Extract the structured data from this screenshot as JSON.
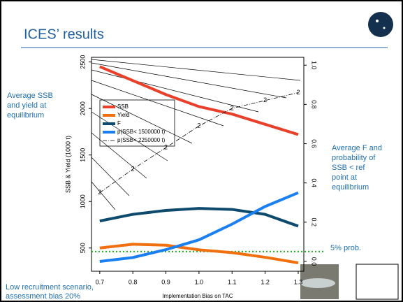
{
  "slide_title": "ICES’ results",
  "left_note": [
    "Average SSB",
    "and yield at",
    "equilibrium"
  ],
  "right_note": [
    "Average F and",
    "probability of",
    "SSB < ref",
    "point at",
    "equilibrium"
  ],
  "bottom_note": [
    "Low recruitment scenario,",
    "assessment bias 20%"
  ],
  "chart_data": {
    "type": "line",
    "x_label": "Implementation Bias on TAC",
    "y_label": "SSB & Yield (1000 t)",
    "xlim": [
      0.675,
      1.317
    ],
    "xticks": [
      0.7,
      0.8,
      0.9,
      {
        "value": 1,
        "label": "1.0"
      },
      1.1,
      1.2,
      1.3
    ],
    "x": [
      0.7,
      0.8,
      0.9,
      1.0,
      1.1,
      1.2,
      1.3
    ],
    "ylim": [
      250,
      2550
    ],
    "yticks": [
      500,
      1000,
      1500,
      2000,
      2500
    ],
    "y2lim": [
      -0.05,
      1.04
    ],
    "y2ticks": [
      {
        "value": 0,
        "label": "0.0"
      },
      0.2,
      0.4,
      0.6,
      0.8,
      {
        "value": 1,
        "label": "1.0"
      }
    ],
    "series": [
      {
        "name": "SSB",
        "color": "#e8402a",
        "values": [
          2450,
          2300,
          2150,
          2020,
          1940,
          1830,
          1720
        ]
      },
      {
        "name": "Yield",
        "color": "#f07010",
        "values": [
          500,
          540,
          530,
          480,
          450,
          400,
          340
        ]
      },
      {
        "name": "F",
        "color": "#0d4a6e",
        "axis": "y2",
        "values": [
          0.206,
          0.24,
          0.26,
          0.27,
          0.265,
          0.24,
          0.18
        ]
      },
      {
        "name": "p(SSB< 1500000 t)",
        "color": "#1a7ff0",
        "axis": "y2",
        "values": [
          0.0,
          0.02,
          0.06,
          0.11,
          0.19,
          0.28,
          0.35
        ]
      },
      {
        "name": "p(SSB< 2250000 t)",
        "color": "#000000",
        "axis": "y2",
        "dash": true,
        "marker": "2",
        "values": [
          0.35,
          0.47,
          0.58,
          0.69,
          0.78,
          0.82,
          0.86
        ]
      }
    ],
    "reference_line": {
      "value": 0.05,
      "axis": "y2",
      "color": "#20b020",
      "label": "5% prob."
    }
  }
}
